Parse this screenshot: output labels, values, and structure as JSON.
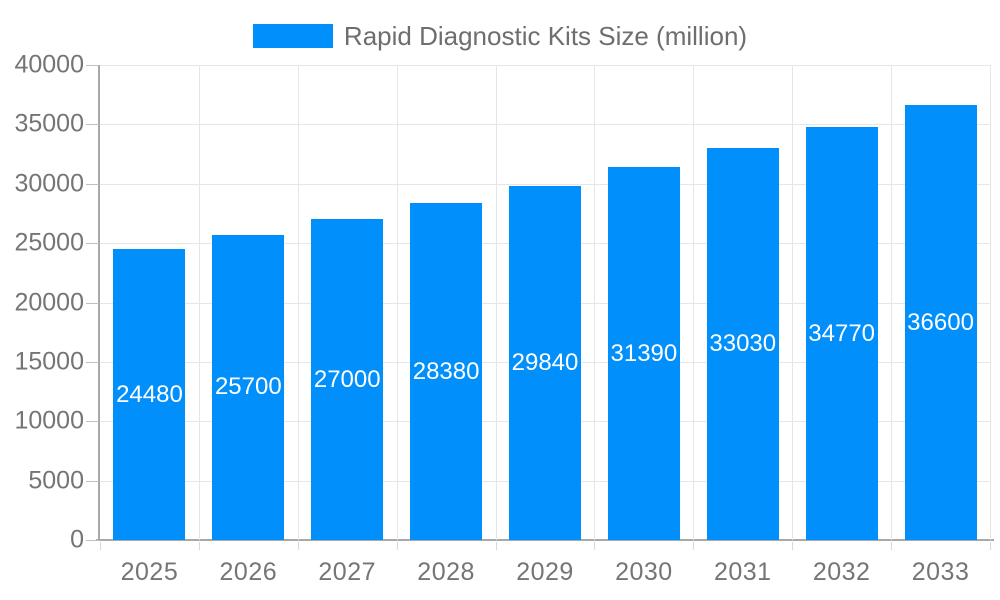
{
  "legend": {
    "label": "Rapid Diagnostic Kits Size (million)"
  },
  "chart_data": {
    "type": "bar",
    "title": "Rapid Diagnostic Kits Size (million)",
    "categories": [
      "2025",
      "2026",
      "2027",
      "2028",
      "2029",
      "2030",
      "2031",
      "2032",
      "2033"
    ],
    "series": [
      {
        "name": "Rapid Diagnostic Kits Size (million)",
        "values": [
          24480,
          25700,
          27000,
          28380,
          29840,
          31390,
          33030,
          34770,
          36600
        ]
      }
    ],
    "xlabel": "",
    "ylabel": "",
    "ylim": [
      0,
      40000
    ],
    "yticks": [
      0,
      5000,
      10000,
      15000,
      20000,
      25000,
      30000,
      35000,
      40000
    ],
    "grid": true,
    "legend_position": "top",
    "data_labels": {
      "visible": true,
      "position": "center",
      "color": "#ffffff"
    },
    "colors": {
      "bar": "#008FFB",
      "grid": "#e6e6e6",
      "axis_line": "#a8a8a8",
      "axis_text": "#757575",
      "legend_text": "#6e6e6e",
      "data_label_text": "#ffffff",
      "background": "#ffffff"
    }
  }
}
